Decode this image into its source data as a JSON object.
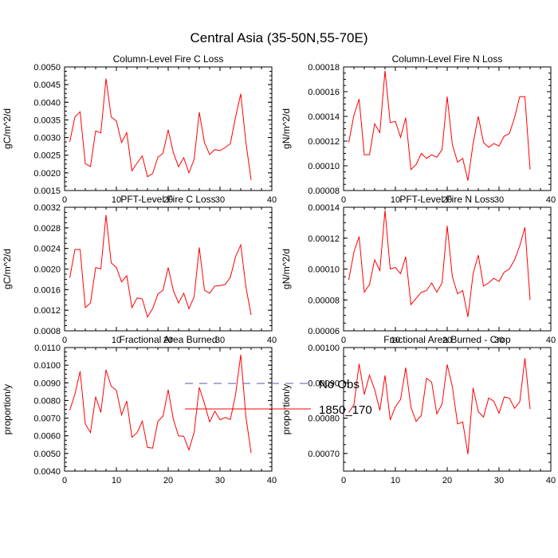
{
  "title": "Central Asia (35-50N,55-70E)",
  "colors": {
    "model_line": "#ff0000",
    "obs_line": "#5a5aa6",
    "axis": "#000000"
  },
  "legend": {
    "items": [
      {
        "label": "No Obs",
        "style": "dashed",
        "color": "#5a5aa6"
      },
      {
        "label": "1850_170",
        "style": "solid",
        "color": "#ff0000"
      }
    ]
  },
  "chart_data": [
    {
      "type": "line",
      "title": "Column-Level Fire C Loss",
      "ylabel": "gC/m^2/d",
      "xlim": [
        0,
        40
      ],
      "ylim": [
        0.0015,
        0.005
      ],
      "xticks": [
        "0",
        "10",
        "20",
        "30",
        "40"
      ],
      "yticks": [
        "0.0015",
        "0.0020",
        "0.0025",
        "0.0030",
        "0.0035",
        "0.0040",
        "0.0045",
        "0.0050"
      ],
      "series": [
        {
          "name": "1850_170",
          "x": [
            1,
            2,
            3,
            4,
            5,
            6,
            7,
            8,
            9,
            10,
            11,
            12,
            13,
            14,
            15,
            16,
            17,
            18,
            19,
            20,
            21,
            22,
            23,
            24,
            25,
            26,
            27,
            28,
            29,
            30,
            31,
            32,
            33,
            34,
            35,
            36
          ],
          "values": [
            0.00288,
            0.00358,
            0.00373,
            0.00226,
            0.00218,
            0.00319,
            0.00313,
            0.00467,
            0.00358,
            0.00347,
            0.00286,
            0.00314,
            0.00206,
            0.00228,
            0.00248,
            0.00189,
            0.00198,
            0.00244,
            0.00256,
            0.00322,
            0.00257,
            0.00217,
            0.00243,
            0.002,
            0.00238,
            0.00372,
            0.00286,
            0.00252,
            0.00266,
            0.00263,
            0.00272,
            0.00283,
            0.00358,
            0.00424,
            0.00286,
            0.0018
          ]
        }
      ]
    },
    {
      "type": "line",
      "title": "Column-Level Fire N Loss",
      "ylabel": "gN/m^2/d",
      "xlim": [
        0,
        40
      ],
      "ylim": [
        8e-05,
        0.00018
      ],
      "xticks": [
        "0",
        "10",
        "20",
        "30",
        "40"
      ],
      "yticks": [
        "0.00008",
        "0.00010",
        "0.00012",
        "0.00014",
        "0.00016",
        "0.00018"
      ],
      "series": [
        {
          "name": "1850_170",
          "x": [
            1,
            2,
            3,
            4,
            5,
            6,
            7,
            8,
            9,
            10,
            11,
            12,
            13,
            14,
            15,
            16,
            17,
            18,
            19,
            20,
            21,
            22,
            23,
            24,
            25,
            26,
            27,
            28,
            29,
            30,
            31,
            32,
            33,
            34,
            35,
            36
          ],
          "values": [
            0.000119,
            0.000141,
            0.000154,
            0.000109,
            0.000109,
            0.000134,
            0.000127,
            0.000177,
            0.000135,
            0.000136,
            0.000123,
            0.000139,
            9.7e-05,
            0.000101,
            0.00011,
            0.000106,
            0.000109,
            0.000107,
            0.000113,
            0.000156,
            0.000117,
            0.000103,
            0.000106,
            8.8e-05,
            0.000118,
            0.00014,
            0.000119,
            0.000115,
            0.000118,
            0.000116,
            0.000124,
            0.000126,
            0.000139,
            0.000156,
            0.000156,
            9.7e-05
          ]
        }
      ]
    },
    {
      "type": "line",
      "title": "PFT-Level Fire C Loss",
      "ylabel": "gC/m^2/d",
      "xlim": [
        0,
        40
      ],
      "ylim": [
        0.0008,
        0.0032
      ],
      "xticks": [
        "0",
        "10",
        "20",
        "30",
        "40"
      ],
      "yticks": [
        "0.0008",
        "0.0012",
        "0.0016",
        "0.0020",
        "0.0024",
        "0.0028",
        "0.0032"
      ],
      "series": [
        {
          "name": "1850_170",
          "x": [
            1,
            2,
            3,
            4,
            5,
            6,
            7,
            8,
            9,
            10,
            11,
            12,
            13,
            14,
            15,
            16,
            17,
            18,
            19,
            20,
            21,
            22,
            23,
            24,
            25,
            26,
            27,
            28,
            29,
            30,
            31,
            32,
            33,
            34,
            35,
            36
          ],
          "values": [
            0.00183,
            0.00238,
            0.00238,
            0.00125,
            0.00134,
            0.00203,
            0.002,
            0.00305,
            0.00212,
            0.00203,
            0.00175,
            0.00187,
            0.00125,
            0.00144,
            0.00142,
            0.00107,
            0.00123,
            0.00151,
            0.00159,
            0.00203,
            0.00158,
            0.00134,
            0.00153,
            0.00123,
            0.00146,
            0.00242,
            0.00159,
            0.00153,
            0.00167,
            0.00168,
            0.0017,
            0.00184,
            0.00224,
            0.00247,
            0.00165,
            0.00111
          ]
        }
      ]
    },
    {
      "type": "line",
      "title": "PFT-Level Fire N Loss",
      "ylabel": "gN/m^2/d",
      "xlim": [
        0,
        40
      ],
      "ylim": [
        6e-05,
        0.00014
      ],
      "xticks": [
        "0",
        "10",
        "20",
        "30",
        "40"
      ],
      "yticks": [
        "0.00006",
        "0.00008",
        "0.00010",
        "0.00012",
        "0.00014"
      ],
      "series": [
        {
          "name": "1850_170",
          "x": [
            1,
            2,
            3,
            4,
            5,
            6,
            7,
            8,
            9,
            10,
            11,
            12,
            13,
            14,
            15,
            16,
            17,
            18,
            19,
            20,
            21,
            22,
            23,
            24,
            25,
            26,
            27,
            28,
            29,
            30,
            31,
            32,
            33,
            34,
            35,
            36
          ],
          "values": [
            9.3e-05,
            0.000111,
            0.000121,
            8.5e-05,
            9e-05,
            0.000106,
            9.9e-05,
            0.000138,
            0.0001,
            0.000101,
            9.7e-05,
            0.000108,
            7.7e-05,
            8.1e-05,
            8.5e-05,
            8.6e-05,
            9.1e-05,
            8.5e-05,
            9.1e-05,
            0.000128,
            9.5e-05,
            8.4e-05,
            8.6e-05,
            6.9e-05,
            9.7e-05,
            0.000109,
            8.9e-05,
            9.1e-05,
            9.4e-05,
            9.2e-05,
            9.8e-05,
            0.0001,
            0.000106,
            0.000115,
            0.000127,
            8e-05
          ]
        }
      ]
    },
    {
      "type": "line",
      "title": "Fractional Area Burned",
      "ylabel": "proportion/y",
      "xlim": [
        0,
        40
      ],
      "ylim": [
        0.004,
        0.011
      ],
      "xticks": [
        "0",
        "10",
        "20",
        "30",
        "40"
      ],
      "yticks": [
        "0.0040",
        "0.0050",
        "0.0060",
        "0.0070",
        "0.0080",
        "0.0090",
        "0.0100",
        "0.0110"
      ],
      "series": [
        {
          "name": "1850_170",
          "x": [
            1,
            2,
            3,
            4,
            5,
            6,
            7,
            8,
            9,
            10,
            11,
            12,
            13,
            14,
            15,
            16,
            17,
            18,
            19,
            20,
            21,
            22,
            23,
            24,
            25,
            26,
            27,
            28,
            29,
            30,
            31,
            32,
            33,
            34,
            35,
            36
          ],
          "values": [
            0.00745,
            0.00836,
            0.00966,
            0.00668,
            0.00618,
            0.00822,
            0.00732,
            0.00974,
            0.00881,
            0.00858,
            0.00718,
            0.00797,
            0.00592,
            0.00617,
            0.00683,
            0.00534,
            0.0053,
            0.00681,
            0.00712,
            0.00861,
            0.00692,
            0.00599,
            0.00598,
            0.0052,
            0.00619,
            0.00874,
            0.00783,
            0.00679,
            0.00739,
            0.00691,
            0.00704,
            0.00692,
            0.00834,
            0.0106,
            0.00707,
            0.00503
          ]
        }
      ]
    },
    {
      "type": "line",
      "title": "Fractional Area Burned - Crop",
      "ylabel": "proportion/y",
      "xlim": [
        0,
        40
      ],
      "ylim": [
        0.00065,
        0.001
      ],
      "xticks": [
        "0",
        "10",
        "20",
        "30",
        "40"
      ],
      "yticks": [
        "0.00070",
        "0.00080",
        "0.00090",
        "0.00100"
      ],
      "series": [
        {
          "name": "1850_170",
          "x": [
            1,
            2,
            3,
            4,
            5,
            6,
            7,
            8,
            9,
            10,
            11,
            12,
            13,
            14,
            15,
            16,
            17,
            18,
            19,
            20,
            21,
            22,
            23,
            24,
            25,
            26,
            27,
            28,
            29,
            30,
            31,
            32,
            33,
            34,
            35,
            36
          ],
          "values": [
            0.000816,
            0.000838,
            0.000954,
            0.000867,
            0.000922,
            0.000881,
            0.000822,
            0.000921,
            0.000795,
            0.000832,
            0.000853,
            0.000943,
            0.000831,
            0.000791,
            0.000808,
            0.000913,
            0.000902,
            0.000812,
            0.00084,
            0.000952,
            0.000889,
            0.000784,
            0.000789,
            0.000698,
            0.000886,
            0.000819,
            0.000803,
            0.000857,
            0.000848,
            0.000814,
            0.00086,
            0.000857,
            0.000828,
            0.000846,
            0.00097,
            0.000826
          ]
        }
      ]
    }
  ]
}
